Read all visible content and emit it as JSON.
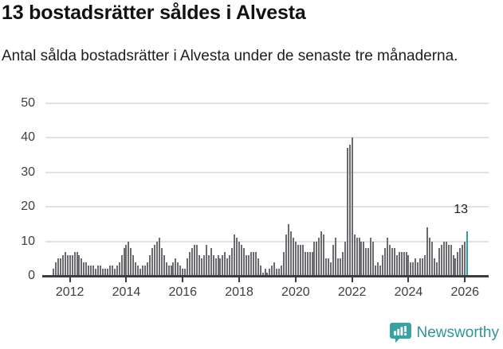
{
  "header": {
    "title": "13 bostadsrätter såldes i Alvesta",
    "subtitle": "Antal sålda bostadsrätter i Alvesta under de senaste tre månaderna."
  },
  "chart_data": {
    "type": "bar",
    "title": "13 bostadsrätter såldes i Alvesta",
    "xlabel": "",
    "ylabel": "",
    "x_start": "2011-06",
    "x_end": "2026-02",
    "x_frequency": "monthly",
    "ylim": [
      0,
      50
    ],
    "yticks": [
      0,
      10,
      20,
      30,
      40,
      50
    ],
    "xtick_years": [
      2012,
      2014,
      2016,
      2018,
      2020,
      2022,
      2024,
      2026
    ],
    "grid": "horizontal",
    "values": [
      2,
      4,
      5,
      5,
      6,
      7,
      6,
      6,
      6,
      7,
      7,
      6,
      5,
      4,
      4,
      3,
      3,
      3,
      2,
      3,
      3,
      2,
      2,
      2,
      3,
      3,
      2,
      3,
      4,
      6,
      8,
      9,
      10,
      8,
      6,
      4,
      3,
      2,
      3,
      3,
      4,
      6,
      8,
      9,
      10,
      11,
      8,
      6,
      4,
      3,
      3,
      4,
      5,
      4,
      3,
      2,
      2,
      5,
      7,
      8,
      9,
      9,
      6,
      5,
      6,
      9,
      6,
      8,
      6,
      5,
      6,
      5,
      6,
      7,
      5,
      6,
      8,
      12,
      11,
      10,
      9,
      8,
      6,
      6,
      7,
      7,
      7,
      5,
      3,
      1,
      2,
      1,
      2,
      3,
      4,
      2,
      2,
      3,
      7,
      12,
      15,
      13,
      11,
      10,
      9,
      9,
      9,
      7,
      7,
      7,
      7,
      10,
      10,
      11,
      13,
      12,
      5,
      5,
      4,
      9,
      11,
      5,
      5,
      7,
      10,
      37,
      38,
      40,
      12,
      11,
      11,
      10,
      10,
      8,
      8,
      11,
      10,
      3,
      4,
      3,
      6,
      8,
      11,
      9,
      8,
      8,
      6,
      7,
      7,
      7,
      7,
      6,
      4,
      4,
      5,
      4,
      5,
      5,
      6,
      14,
      11,
      10,
      5,
      4,
      8,
      9,
      10,
      10,
      9,
      9,
      6,
      5,
      7,
      8,
      9,
      10,
      13
    ],
    "highlight_last": true,
    "annotation": {
      "text": "13",
      "applies_to": "last-bar"
    },
    "colors": {
      "bar": "#6b6b70",
      "highlight": "#2aa0a1",
      "gridline": "#e2e2e2",
      "axis": "#3c3c41",
      "tick_label": "#3f3f3f"
    }
  },
  "footer": {
    "brand": "Newsworthy",
    "brand_color": "#2f9596",
    "logo_icon": "newsworthy-speech-bubble-chart-icon",
    "logo_color": "#36a2a2"
  }
}
